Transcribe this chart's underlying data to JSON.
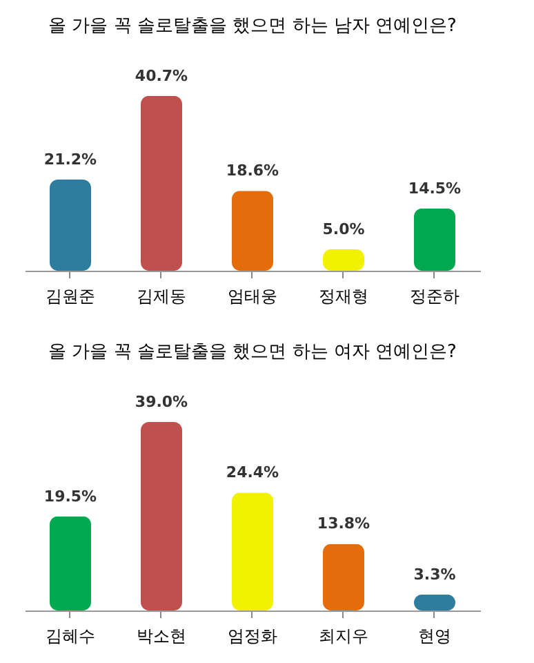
{
  "chart_data": [
    {
      "type": "bar",
      "title": "올 가을 꼭 솔로탈출을 했으면 하는 남자 연예인은?",
      "categories": [
        "김원준",
        "김제동",
        "엄태웅",
        "정재형",
        "정준하"
      ],
      "values": [
        21.2,
        40.7,
        18.6,
        5.0,
        14.5
      ],
      "colors": [
        "#2e7d9e",
        "#c0504d",
        "#e46c0a",
        "#f2f200",
        "#00a84f"
      ],
      "value_labels": [
        "21.2%",
        "40.7%",
        "18.6%",
        "5.0%",
        "14.5%"
      ]
    },
    {
      "type": "bar",
      "title": "올 가을 꼭 솔로탈출을 했으면 하는 여자 연예인은?",
      "categories": [
        "김혜수",
        "박소현",
        "엄정화",
        "최지우",
        "현영"
      ],
      "values": [
        19.5,
        39.0,
        24.4,
        13.8,
        3.3
      ],
      "colors": [
        "#00a84f",
        "#c0504d",
        "#f2f200",
        "#e46c0a",
        "#2e7d9e"
      ],
      "value_labels": [
        "19.5%",
        "39.0%",
        "24.4%",
        "13.8%",
        "3.3%"
      ]
    }
  ]
}
